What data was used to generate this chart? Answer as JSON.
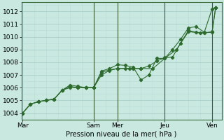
{
  "background_color": "#c8e8e0",
  "grid_major_color": "#aacfca",
  "grid_minor_color": "#b8ddd8",
  "line_color": "#2d6a2d",
  "marker_color": "#2d6a2d",
  "title": "Pression niveau de la mer( hPa )",
  "ylim": [
    1003.5,
    1012.7
  ],
  "yticks": [
    1004,
    1005,
    1006,
    1007,
    1008,
    1009,
    1010,
    1011,
    1012
  ],
  "day_labels": [
    "Mar",
    "Sam",
    "Mer",
    "Jeu",
    "Ven"
  ],
  "day_positions": [
    0,
    3,
    4,
    6,
    8
  ],
  "vline_positions": [
    3.0,
    4.0,
    6.0,
    8.0
  ],
  "series1_x": [
    0,
    0.33,
    0.67,
    1.0,
    1.33,
    1.67,
    2.0,
    2.33,
    2.67,
    3.0,
    3.33,
    3.67,
    4.0,
    4.33,
    4.67,
    5.0,
    5.33,
    5.67,
    6.0,
    6.33,
    6.67,
    7.0,
    7.33,
    7.67,
    8.0,
    8.15
  ],
  "series1_y": [
    1004.0,
    1004.7,
    1004.9,
    1005.0,
    1005.1,
    1005.8,
    1006.2,
    1006.1,
    1006.0,
    1006.0,
    1007.3,
    1007.5,
    1007.8,
    1007.75,
    1007.6,
    1006.6,
    1007.0,
    1008.3,
    1008.3,
    1009.0,
    1009.8,
    1010.7,
    1010.8,
    1010.35,
    1012.2,
    1012.3
  ],
  "series2_x": [
    0,
    0.33,
    0.67,
    1.0,
    1.33,
    1.67,
    2.0,
    2.33,
    2.67,
    3.0,
    3.33,
    3.67,
    4.0,
    4.33,
    4.67,
    5.0,
    5.33,
    5.67,
    6.0,
    6.33,
    6.67,
    7.0,
    7.33,
    7.67,
    8.0,
    8.15
  ],
  "series2_y": [
    1004.0,
    1004.7,
    1004.9,
    1005.0,
    1005.1,
    1005.8,
    1006.1,
    1006.0,
    1006.0,
    1006.0,
    1007.2,
    1007.4,
    1007.5,
    1007.5,
    1007.5,
    1007.5,
    1007.7,
    1008.1,
    1008.35,
    1008.4,
    1009.5,
    1010.5,
    1010.35,
    1010.3,
    1010.4,
    1012.3
  ],
  "series3_x": [
    0,
    0.33,
    0.67,
    1.0,
    1.33,
    1.67,
    2.0,
    2.33,
    2.67,
    3.0,
    3.33,
    3.67,
    4.0,
    4.5,
    5.0,
    5.5,
    6.0,
    6.5,
    7.0,
    7.5,
    8.0,
    8.15
  ],
  "series3_y": [
    1004.0,
    1004.7,
    1004.9,
    1005.0,
    1005.1,
    1005.8,
    1006.0,
    1006.0,
    1006.0,
    1006.0,
    1007.0,
    1007.35,
    1007.5,
    1007.5,
    1007.5,
    1007.5,
    1008.3,
    1009.0,
    1010.4,
    1010.3,
    1010.35,
    1012.3
  ],
  "xlim": [
    -0.05,
    8.4
  ],
  "ylabel_fontsize": 7,
  "tick_fontsize": 6.5
}
